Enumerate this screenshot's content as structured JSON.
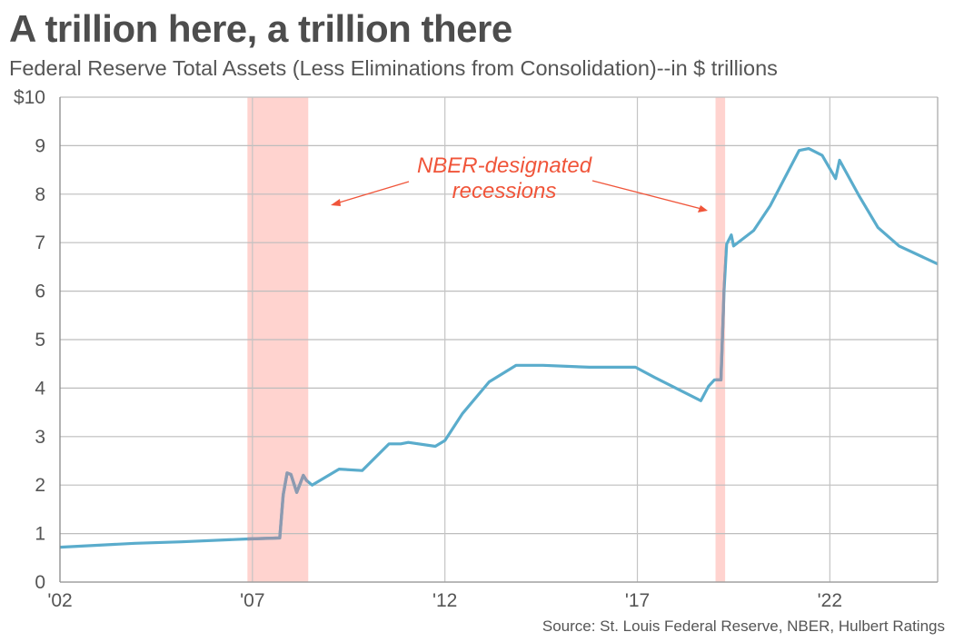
{
  "title": "A trillion here, a trillion there",
  "subtitle": "Federal Reserve Total Assets (Less Eliminations from Consolidation)--in $ trillions",
  "source": "Source: St. Louis Federal Reserve, NBER, Hulbert Ratings",
  "chart_data": {
    "type": "line",
    "title": "A trillion here, a trillion there",
    "subtitle": "Federal Reserve Total Assets (Less Eliminations from Consolidation)--in $ trillions",
    "xlabel": "",
    "ylabel": "",
    "xlim": [
      2003.05,
      2025.85
    ],
    "ylim": [
      0,
      10
    ],
    "grid": true,
    "x_ticks": [
      "'02",
      "'07",
      "'12",
      "'17",
      "'22"
    ],
    "y_ticks": [
      "0",
      "1",
      "2",
      "3",
      "4",
      "5",
      "6",
      "7",
      "8",
      "9",
      "$10"
    ],
    "colors": {
      "line": "#5aaccc",
      "line_in_recession": "#8d9ab0",
      "recession": "#ffd3cf",
      "annotation": "#f0553a"
    },
    "recessions": [
      [
        2007.92,
        2009.5
      ],
      [
        2020.08,
        2020.33
      ]
    ],
    "annotation": {
      "line1": "NBER-designated",
      "line2": "recessions"
    },
    "series": [
      {
        "x": [
          2003.05,
          2005.0,
          2006.2,
          2007.93,
          2008.76,
          2008.85,
          2008.95,
          2009.05,
          2009.2,
          2009.3,
          2009.37,
          2009.45,
          2009.6,
          2010.3,
          2010.9,
          2011.6,
          2011.9,
          2012.1,
          2012.8,
          2013.05,
          2013.5,
          2014.2,
          2014.9,
          2015.6,
          2016.8,
          2018.0,
          2018.5,
          2019.7,
          2019.9,
          2020.05,
          2020.22,
          2020.3,
          2020.37,
          2020.49,
          2020.55,
          2021.07,
          2021.5,
          2022.0,
          2022.25,
          2022.5,
          2022.85,
          2023.2,
          2023.3,
          2023.8,
          2024.3,
          2024.85,
          2025.85
        ],
        "y": [
          0.72,
          0.8,
          0.83,
          0.89,
          0.91,
          1.8,
          2.25,
          2.22,
          1.85,
          2.05,
          2.2,
          2.1,
          2.0,
          2.33,
          2.3,
          2.85,
          2.85,
          2.88,
          2.8,
          2.92,
          3.47,
          4.13,
          4.47,
          4.47,
          4.43,
          4.43,
          4.22,
          3.74,
          4.04,
          4.17,
          4.17,
          6.0,
          6.97,
          7.16,
          6.93,
          7.25,
          7.76,
          8.52,
          8.9,
          8.94,
          8.8,
          8.32,
          8.7,
          7.98,
          7.31,
          6.93,
          6.56
        ]
      }
    ]
  }
}
